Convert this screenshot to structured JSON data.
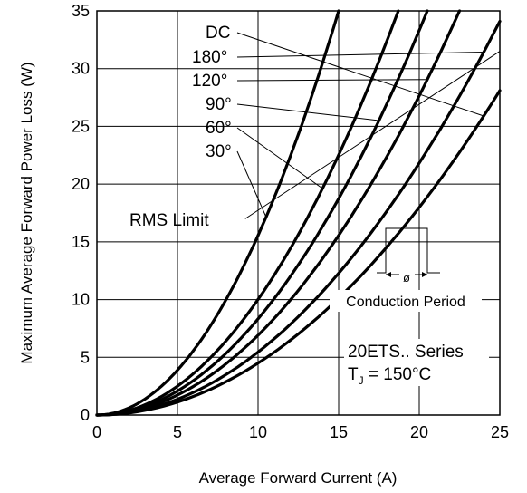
{
  "chart_data": {
    "type": "line",
    "title": "",
    "xlabel": "Average Forward Current (A)",
    "ylabel": "Maximum Average Forward Power Loss (W)",
    "xlim": [
      0,
      25
    ],
    "ylim": [
      0,
      35
    ],
    "xticks": [
      0,
      5,
      10,
      15,
      20,
      25
    ],
    "yticks": [
      0,
      5,
      10,
      15,
      20,
      25,
      30,
      35
    ],
    "grid": true,
    "series": [
      {
        "name": "DC",
        "x": [
          0,
          25
        ],
        "y": [
          0,
          28.1
        ]
      },
      {
        "name": "180°",
        "x": [
          0,
          25
        ],
        "y": [
          0,
          34.1
        ]
      },
      {
        "name": "120°",
        "x": [
          0,
          22.5
        ],
        "y": [
          0,
          35
        ]
      },
      {
        "name": "90°",
        "x": [
          0,
          20.5
        ],
        "y": [
          0,
          35
        ]
      },
      {
        "name": "60°",
        "x": [
          0,
          18.7
        ],
        "y": [
          0,
          35
        ]
      },
      {
        "name": "30°",
        "x": [
          0,
          15
        ],
        "y": [
          0,
          35
        ]
      }
    ],
    "rms_limit": {
      "label": "RMS Limit",
      "x": [
        9.2,
        25
      ],
      "y": [
        17,
        31.5
      ]
    },
    "annotations": {
      "conduction_period": "Conduction Period",
      "phi": "ø",
      "series_name": "20ETS.. Series",
      "tj_main": "T",
      "tj_sub": "J",
      "tj_rest": " = 150°C"
    }
  }
}
